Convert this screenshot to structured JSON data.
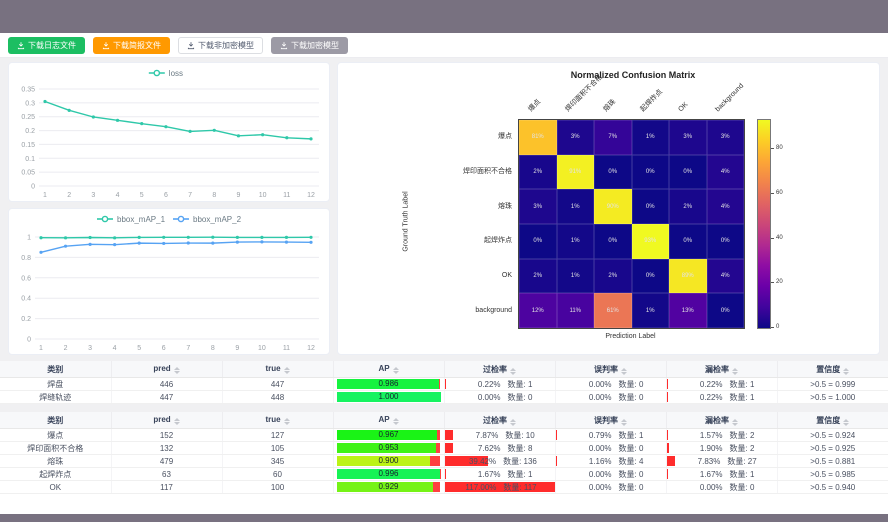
{
  "colors": {
    "frame": "#787180",
    "button_green": "#1cbe62",
    "button_orange": "#ff9900",
    "button_gray": "#9c9aa5",
    "loss_line": "#2fc8a9",
    "map2_line": "#57a3f3",
    "rate_bar_red": "#ff2c2c"
  },
  "toolbar": {
    "buttons": [
      {
        "label": "下载日志文件",
        "style": "green",
        "icon": "download-icon"
      },
      {
        "label": "下载简报文件",
        "style": "orange",
        "icon": "download-icon"
      },
      {
        "label": "下载非加密模型",
        "style": "plain",
        "icon": "download-icon"
      },
      {
        "label": "下载加密模型",
        "style": "gray",
        "icon": "download-icon"
      }
    ]
  },
  "chart_data": [
    {
      "type": "line",
      "title": "",
      "x": [
        1,
        2,
        3,
        4,
        5,
        6,
        7,
        8,
        9,
        10,
        11,
        12
      ],
      "series": [
        {
          "name": "loss",
          "color": "#2fc8a9",
          "values": [
            0.305,
            0.273,
            0.249,
            0.237,
            0.225,
            0.214,
            0.197,
            0.201,
            0.181,
            0.185,
            0.174,
            0.17
          ]
        }
      ],
      "ylim": [
        0,
        0.35
      ],
      "yticks": [
        0,
        0.05,
        0.1,
        0.15,
        0.2,
        0.25,
        0.3,
        0.35
      ],
      "legend_position": "top",
      "grid": true
    },
    {
      "type": "line",
      "title": "",
      "x": [
        1,
        2,
        3,
        4,
        5,
        6,
        7,
        8,
        9,
        10,
        11,
        12
      ],
      "series": [
        {
          "name": "bbox_mAP_1",
          "color": "#2fc8a9",
          "values": [
            0.993,
            0.992,
            0.995,
            0.992,
            0.996,
            0.997,
            0.997,
            0.998,
            0.996,
            0.996,
            0.996,
            0.997
          ]
        },
        {
          "name": "bbox_mAP_2",
          "color": "#57a3f3",
          "values": [
            0.85,
            0.91,
            0.928,
            0.925,
            0.94,
            0.937,
            0.941,
            0.94,
            0.95,
            0.952,
            0.95,
            0.948
          ]
        }
      ],
      "ylim": [
        0,
        1
      ],
      "yticks": [
        0,
        0.2,
        0.4,
        0.6,
        0.8,
        1
      ],
      "legend_position": "top",
      "grid": true
    },
    {
      "type": "heatmap",
      "title": "Normalized Confusion Matrix",
      "xlabel": "Prediction Label",
      "ylabel": "Ground Truth Label",
      "labels": [
        "爆点",
        "焊印面积不合格",
        "熔珠",
        "起焊炸点",
        "OK",
        "background"
      ],
      "unit": "%",
      "matrix": [
        [
          81,
          3,
          7,
          1,
          3,
          3
        ],
        [
          2,
          91,
          0,
          0,
          0,
          4
        ],
        [
          3,
          1,
          90,
          0,
          2,
          4
        ],
        [
          0,
          1,
          0,
          93,
          0,
          0
        ],
        [
          2,
          1,
          2,
          0,
          89,
          4
        ],
        [
          12,
          11,
          61,
          1,
          13,
          0
        ]
      ],
      "vmax": 93,
      "colorbar_ticks": [
        0,
        20,
        40,
        60,
        80
      ],
      "colormap": "plasma"
    }
  ],
  "tables": {
    "count_label": "数量:",
    "columns": [
      {
        "label": "类别",
        "sortable": false
      },
      {
        "label": "pred",
        "sortable": true
      },
      {
        "label": "true",
        "sortable": true
      },
      {
        "label": "AP",
        "sortable": true
      },
      {
        "label": "过检率",
        "sortable": true
      },
      {
        "label": "误判率",
        "sortable": true
      },
      {
        "label": "漏检率",
        "sortable": true
      },
      {
        "label": "置信度",
        "sortable": true
      }
    ],
    "groups": [
      {
        "rows": [
          {
            "category": "焊盘",
            "pred": "446",
            "truth": "447",
            "ap": 0.986,
            "over": {
              "pct": 0.22,
              "count": 1
            },
            "mis": {
              "pct": 0.0,
              "count": 0
            },
            "miss": {
              "pct": 0.22,
              "count": 1
            },
            "conf": ">0.5 = 0.999"
          },
          {
            "category": "焊缝轨迹",
            "pred": "447",
            "truth": "448",
            "ap": 1.0,
            "over": {
              "pct": 0.0,
              "count": 0
            },
            "mis": {
              "pct": 0.0,
              "count": 0
            },
            "miss": {
              "pct": 0.22,
              "count": 1
            },
            "conf": ">0.5 = 1.000"
          }
        ]
      },
      {
        "rows": [
          {
            "category": "爆点",
            "pred": "152",
            "truth": "127",
            "ap": 0.967,
            "over": {
              "pct": 7.87,
              "count": 10
            },
            "mis": {
              "pct": 0.79,
              "count": 1
            },
            "miss": {
              "pct": 1.57,
              "count": 2
            },
            "conf": ">0.5 = 0.924"
          },
          {
            "category": "焊印面积不合格",
            "pred": "132",
            "truth": "105",
            "ap": 0.953,
            "over": {
              "pct": 7.62,
              "count": 8
            },
            "mis": {
              "pct": 0.0,
              "count": 0
            },
            "miss": {
              "pct": 1.9,
              "count": 2
            },
            "conf": ">0.5 = 0.925"
          },
          {
            "category": "熔珠",
            "pred": "479",
            "truth": "345",
            "ap": 0.9,
            "over": {
              "pct": 39.42,
              "count": 136
            },
            "mis": {
              "pct": 1.16,
              "count": 4
            },
            "miss": {
              "pct": 7.83,
              "count": 27
            },
            "conf": ">0.5 = 0.881"
          },
          {
            "category": "起焊炸点",
            "pred": "63",
            "truth": "60",
            "ap": 0.996,
            "over": {
              "pct": 1.67,
              "count": 1
            },
            "mis": {
              "pct": 0.0,
              "count": 0
            },
            "miss": {
              "pct": 1.67,
              "count": 1
            },
            "conf": ">0.5 = 0.985"
          },
          {
            "category": "OK",
            "pred": "117",
            "truth": "100",
            "ap": 0.929,
            "over": {
              "pct": 117.0,
              "count": 117
            },
            "mis": {
              "pct": 0.0,
              "count": 0
            },
            "miss": {
              "pct": 0.0,
              "count": 0
            },
            "conf": ">0.5 = 0.940"
          }
        ]
      }
    ]
  }
}
